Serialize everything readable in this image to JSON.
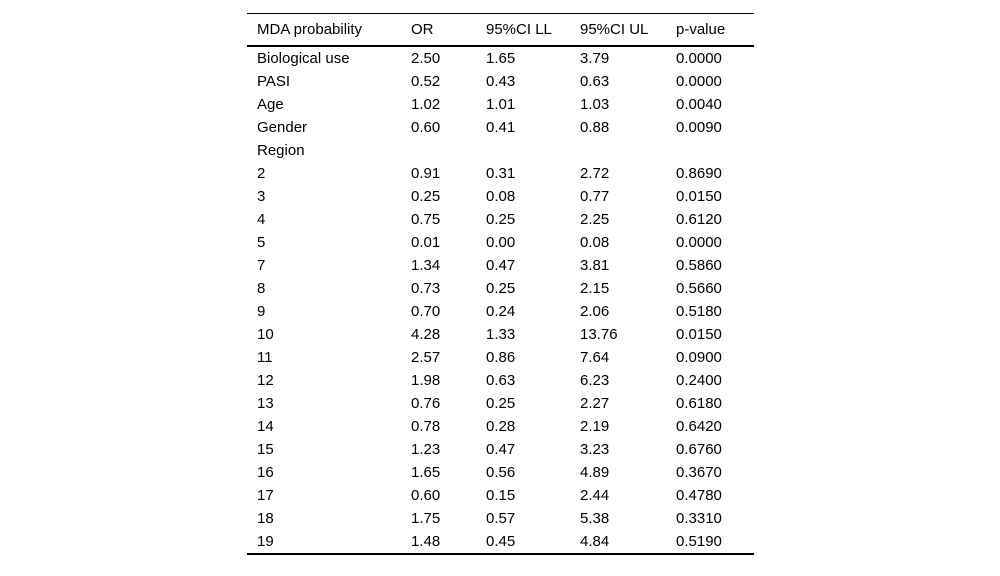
{
  "table": {
    "columns": [
      "MDA probability",
      "OR",
      "95%CI LL",
      "95%CI UL",
      "p-value"
    ],
    "rows": [
      {
        "label": "Biological use",
        "or": "2.50",
        "ll": "1.65",
        "ul": "3.79",
        "p": "0.0000"
      },
      {
        "label": "PASI",
        "or": "0.52",
        "ll": "0.43",
        "ul": "0.63",
        "p": "0.0000"
      },
      {
        "label": "Age",
        "or": "1.02",
        "ll": "1.01",
        "ul": "1.03",
        "p": "0.0040"
      },
      {
        "label": "Gender",
        "or": "0.60",
        "ll": "0.41",
        "ul": "0.88",
        "p": "0.0090"
      },
      {
        "label": "Region",
        "or": "",
        "ll": "",
        "ul": "",
        "p": ""
      },
      {
        "label": "2",
        "or": "0.91",
        "ll": "0.31",
        "ul": "2.72",
        "p": "0.8690"
      },
      {
        "label": "3",
        "or": "0.25",
        "ll": "0.08",
        "ul": "0.77",
        "p": "0.0150"
      },
      {
        "label": "4",
        "or": "0.75",
        "ll": "0.25",
        "ul": "2.25",
        "p": "0.6120"
      },
      {
        "label": "5",
        "or": "0.01",
        "ll": "0.00",
        "ul": "0.08",
        "p": "0.0000"
      },
      {
        "label": "7",
        "or": "1.34",
        "ll": "0.47",
        "ul": "3.81",
        "p": "0.5860"
      },
      {
        "label": "8",
        "or": "0.73",
        "ll": "0.25",
        "ul": "2.15",
        "p": "0.5660"
      },
      {
        "label": "9",
        "or": "0.70",
        "ll": "0.24",
        "ul": "2.06",
        "p": "0.5180"
      },
      {
        "label": "10",
        "or": "4.28",
        "ll": "1.33",
        "ul": "13.76",
        "p": "0.0150"
      },
      {
        "label": "11",
        "or": "2.57",
        "ll": "0.86",
        "ul": "7.64",
        "p": "0.0900"
      },
      {
        "label": "12",
        "or": "1.98",
        "ll": "0.63",
        "ul": "6.23",
        "p": "0.2400"
      },
      {
        "label": "13",
        "or": "0.76",
        "ll": "0.25",
        "ul": "2.27",
        "p": "0.6180"
      },
      {
        "label": "14",
        "or": "0.78",
        "ll": "0.28",
        "ul": "2.19",
        "p": "0.6420"
      },
      {
        "label": "15",
        "or": "1.23",
        "ll": "0.47",
        "ul": "3.23",
        "p": "0.6760"
      },
      {
        "label": "16",
        "or": "1.65",
        "ll": "0.56",
        "ul": "4.89",
        "p": "0.3670"
      },
      {
        "label": "17",
        "or": "0.60",
        "ll": "0.15",
        "ul": "2.44",
        "p": "0.4780"
      },
      {
        "label": "18",
        "or": "1.75",
        "ll": "0.57",
        "ul": "5.38",
        "p": "0.3310"
      },
      {
        "label": "19",
        "or": "1.48",
        "ll": "0.45",
        "ul": "4.84",
        "p": "0.5190"
      }
    ]
  }
}
